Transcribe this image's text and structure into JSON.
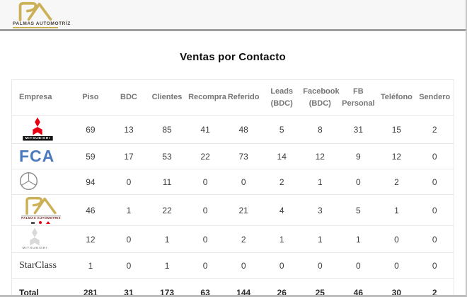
{
  "colors": {
    "gold": "#ccb057",
    "fca-blue": "#4b79bd",
    "mitsubishi-red": "#e60012",
    "mercedes-gray": "#8c8c8c",
    "mitsubishi-gray": "#d9d9d9",
    "topbar-bg": "#f7f7f7",
    "topbar-border": "#9e9e9e",
    "table-border": "#e7e7e7",
    "header-text": "#757575",
    "cell-text": "#3c3c3c"
  },
  "header": {
    "brand": "PALMAS AUTOMOTRÍZ"
  },
  "title": "Ventas por Contacto",
  "logos": {
    "mitsubishi_wordmark": "MITSUBISHI",
    "fca": "FCA",
    "palmas_wordmark": "PALMAS AUTOMOTRIZ"
  },
  "table": {
    "columns": [
      "Empresa",
      "Piso",
      "BDC",
      "Clientes",
      "Recompra",
      "Referido",
      "Leads (BDC)",
      "Facebook (BDC)",
      "FB Personal",
      "Teléfono",
      "Sendero"
    ],
    "rows": [
      {
        "empresa": "Mitsubishi",
        "logo": "mitsubishi-red",
        "values": [
          69,
          13,
          85,
          41,
          48,
          5,
          8,
          31,
          15,
          2
        ]
      },
      {
        "empresa": "FCA",
        "logo": "fca",
        "values": [
          59,
          17,
          53,
          22,
          73,
          14,
          12,
          9,
          12,
          0
        ]
      },
      {
        "empresa": "Mercedes-Benz",
        "logo": "mercedes",
        "values": [
          94,
          0,
          11,
          0,
          0,
          2,
          1,
          0,
          2,
          0
        ]
      },
      {
        "empresa": "Palmas Automotriz",
        "logo": "palmas",
        "values": [
          46,
          1,
          22,
          0,
          21,
          4,
          3,
          5,
          1,
          0
        ]
      },
      {
        "empresa": "Mitsubishi",
        "logo": "mitsubishi-gray",
        "values": [
          12,
          0,
          1,
          0,
          2,
          1,
          1,
          1,
          0,
          0
        ]
      },
      {
        "empresa": "StarClass",
        "logo": "starclass",
        "values": [
          1,
          0,
          1,
          0,
          0,
          0,
          0,
          0,
          0,
          0
        ]
      }
    ],
    "total_label": "Total",
    "total_values": [
      281,
      31,
      173,
      63,
      144,
      26,
      25,
      46,
      30,
      2
    ]
  }
}
